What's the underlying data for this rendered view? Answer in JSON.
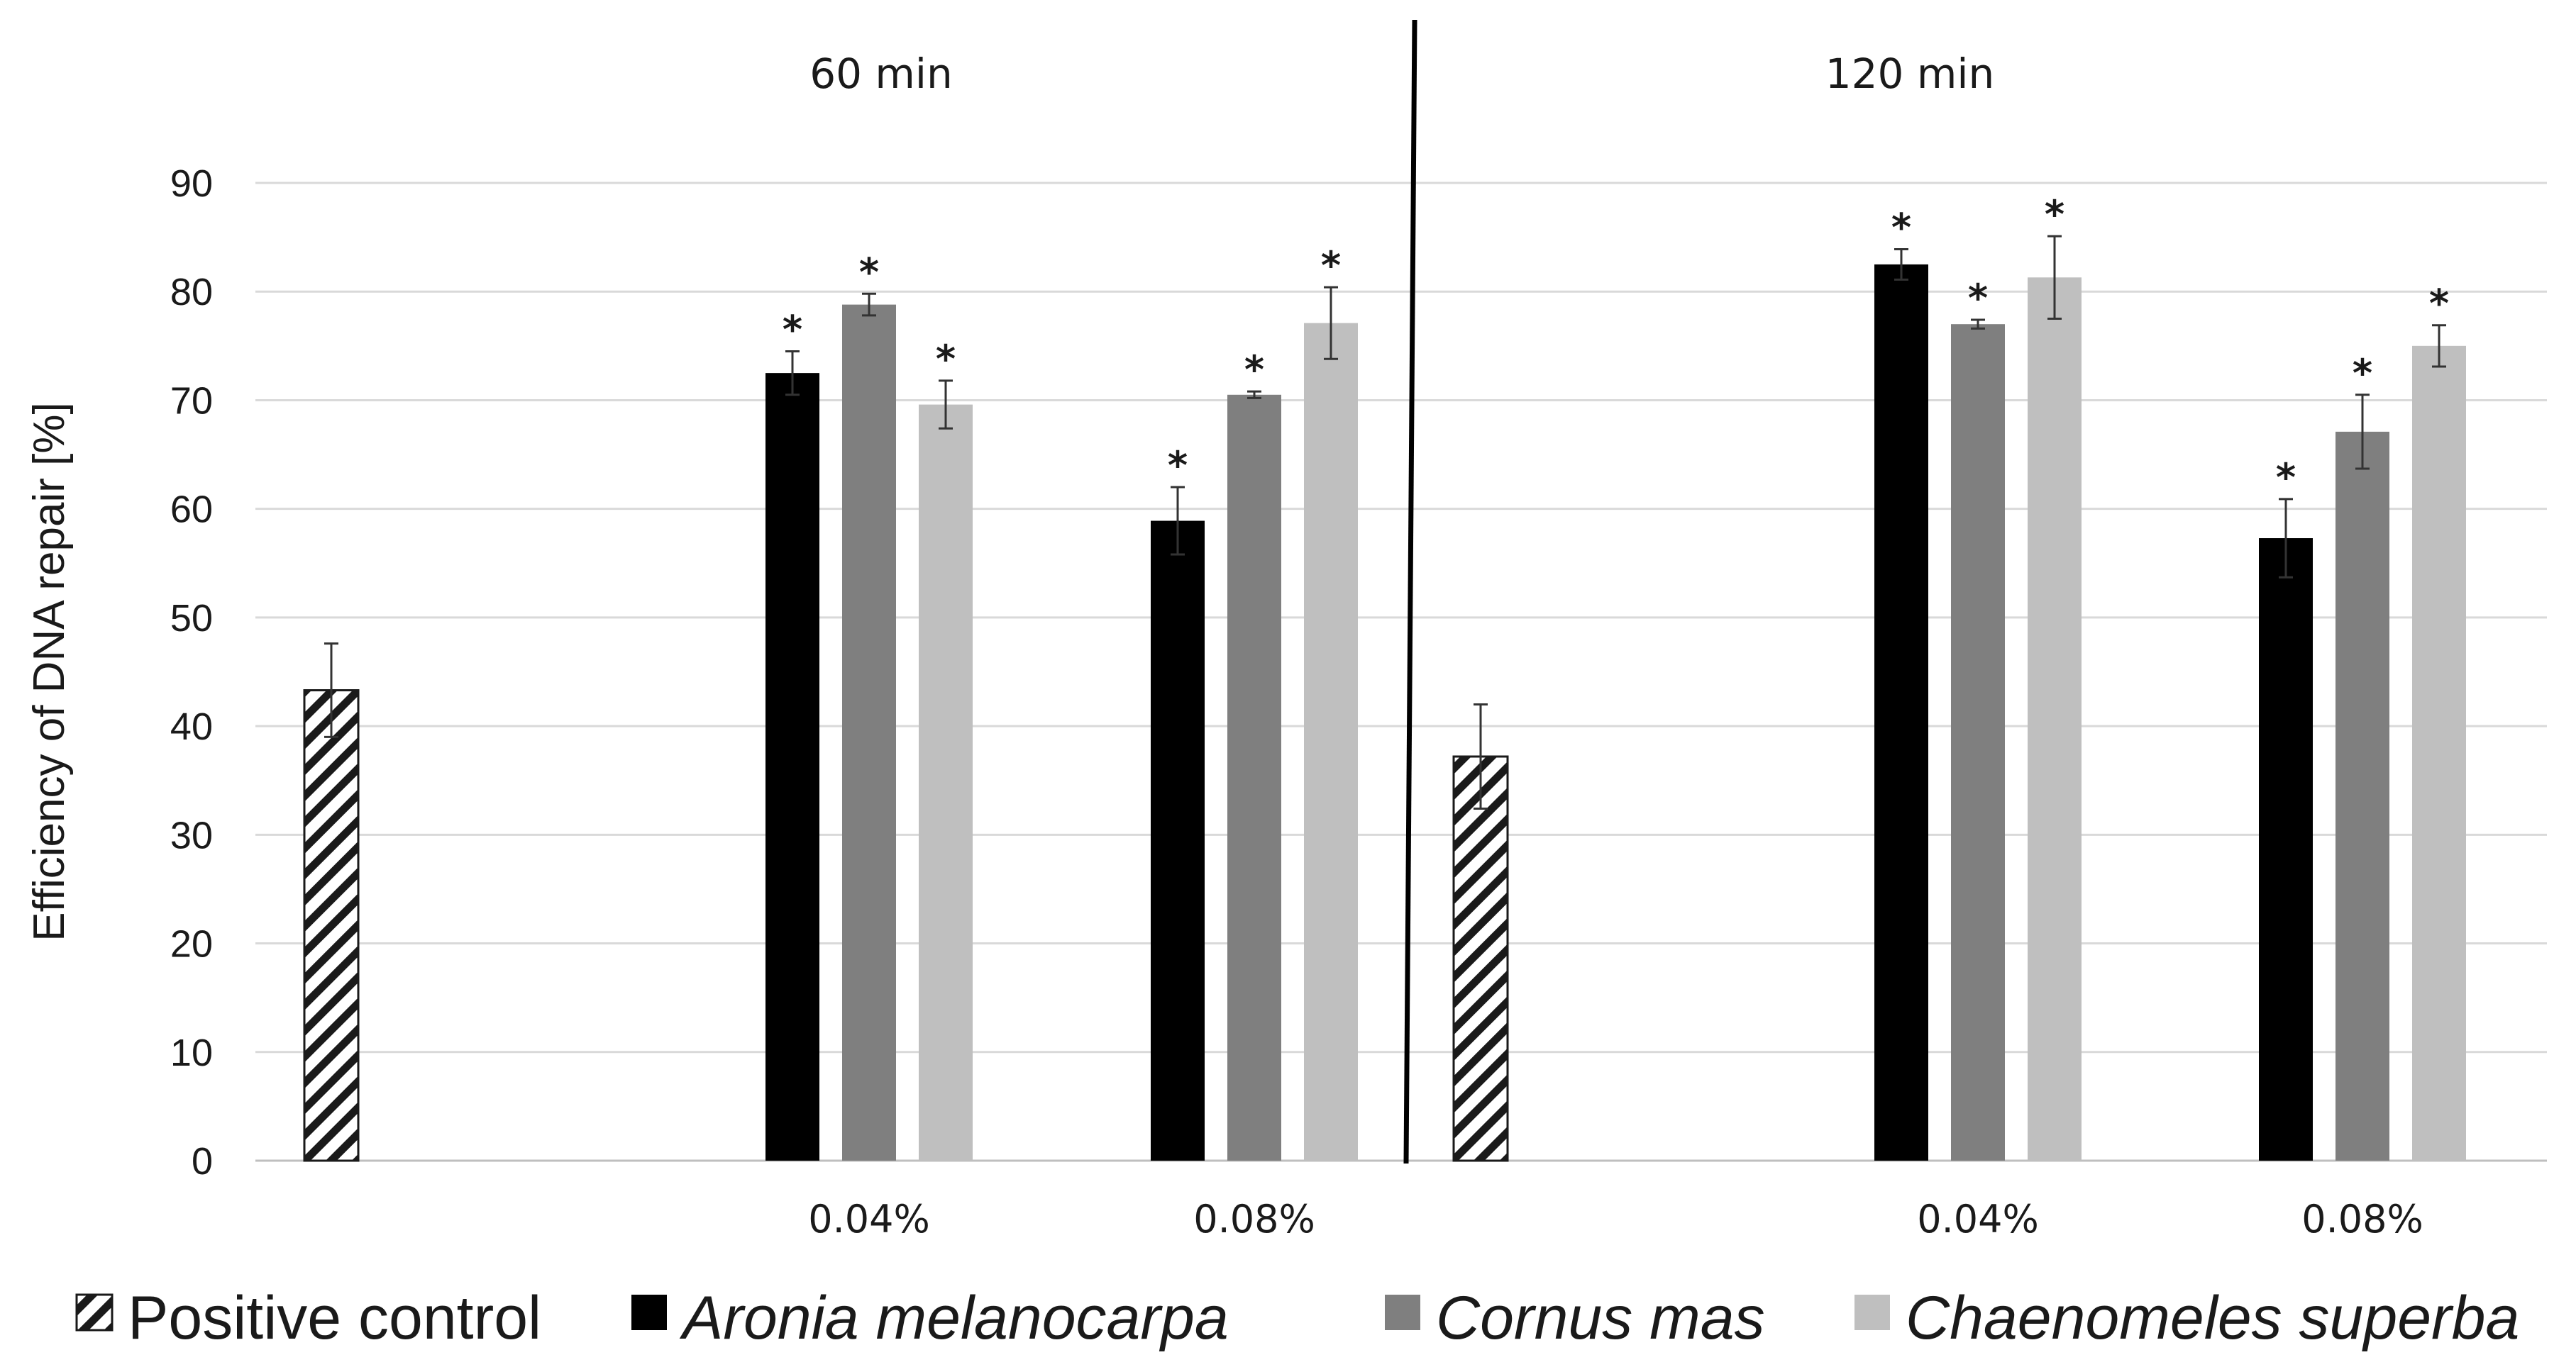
{
  "chart_data": {
    "type": "bar",
    "ylabel": "Efficiency of DNA repair [%]",
    "ylim": [
      0,
      90
    ],
    "yticks": [
      0,
      10,
      20,
      30,
      40,
      50,
      60,
      70,
      80,
      90
    ],
    "grid": true,
    "legend_position": "bottom",
    "series": [
      {
        "name": "Positive control",
        "italic": false,
        "color": "#ffffff",
        "pattern": "hatch"
      },
      {
        "name": "Aronia melanocarpa",
        "italic": true,
        "color": "#000000"
      },
      {
        "name": "Cornus mas",
        "italic": true,
        "color": "#7f7f7f"
      },
      {
        "name": "Chaenomeles superba",
        "italic": true,
        "color": "#bfbfbf"
      }
    ],
    "panels": [
      {
        "label": "60 min",
        "groups": [
          {
            "category": "",
            "bars": [
              {
                "series": 0,
                "value": 43.3,
                "error": 4.3,
                "significant": false
              }
            ]
          },
          {
            "category": "0.04%",
            "bars": [
              {
                "series": 1,
                "value": 72.5,
                "error": 2.0,
                "significant": true
              },
              {
                "series": 2,
                "value": 78.8,
                "error": 1.0,
                "significant": true
              },
              {
                "series": 3,
                "value": 69.6,
                "error": 2.2,
                "significant": true
              }
            ]
          },
          {
            "category": "0.08%",
            "bars": [
              {
                "series": 1,
                "value": 58.9,
                "error": 3.1,
                "significant": true
              },
              {
                "series": 2,
                "value": 70.5,
                "error": 0.3,
                "significant": true
              },
              {
                "series": 3,
                "value": 77.1,
                "error": 3.3,
                "significant": true
              }
            ]
          }
        ]
      },
      {
        "label": "120 min",
        "groups": [
          {
            "category": "",
            "bars": [
              {
                "series": 0,
                "value": 37.2,
                "error": 4.8,
                "significant": false
              }
            ]
          },
          {
            "category": "0.04%",
            "bars": [
              {
                "series": 1,
                "value": 82.5,
                "error": 1.4,
                "significant": true
              },
              {
                "series": 2,
                "value": 77.0,
                "error": 0.4,
                "significant": true
              },
              {
                "series": 3,
                "value": 81.3,
                "error": 3.8,
                "significant": true
              }
            ]
          },
          {
            "category": "0.08%",
            "bars": [
              {
                "series": 1,
                "value": 57.3,
                "error": 3.6,
                "significant": true
              },
              {
                "series": 2,
                "value": 67.1,
                "error": 3.4,
                "significant": true
              },
              {
                "series": 3,
                "value": 75.0,
                "error": 1.9,
                "significant": true
              }
            ]
          }
        ]
      }
    ],
    "significance_marker": "*"
  }
}
